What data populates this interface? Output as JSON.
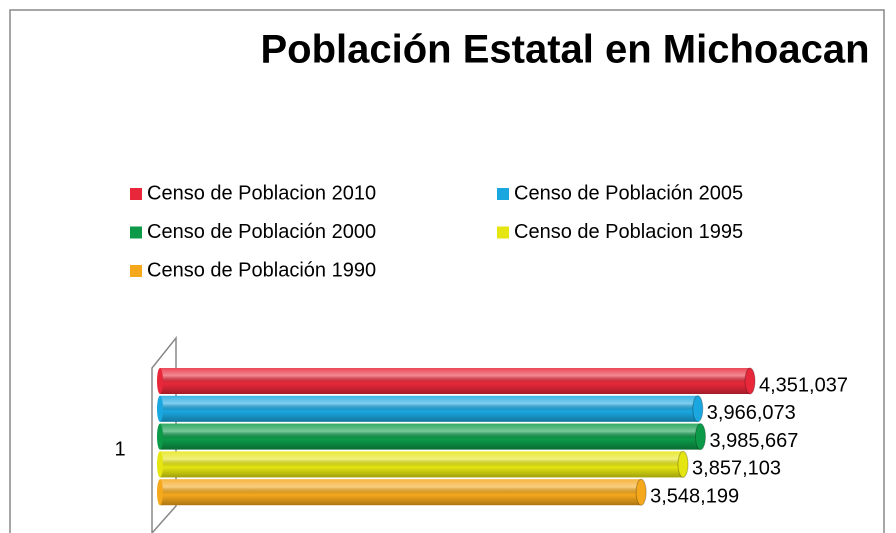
{
  "chart_data": {
    "type": "bar",
    "orientation": "horizontal",
    "title": "Población Estatal en Michoacan",
    "categories": [
      "1"
    ],
    "legend": "top",
    "series": [
      {
        "name": "Censo de Poblacion 2010",
        "color": "#e8283a",
        "values": [
          4351037
        ],
        "value_labels": [
          "4,351,037"
        ]
      },
      {
        "name": "Censo de Población 2005",
        "color": "#1aa7e0",
        "values": [
          3966073
        ],
        "value_labels": [
          "3,966,073"
        ]
      },
      {
        "name": "Censo de Población 2000",
        "color": "#0c9a48",
        "values": [
          3985667
        ],
        "value_labels": [
          "3,985,667"
        ]
      },
      {
        "name": "Censo de Poblacion 1995",
        "color": "#e5e512",
        "values": [
          3857103
        ],
        "value_labels": [
          "3,857,103"
        ]
      },
      {
        "name": "Censo de Población 1990",
        "color": "#f5a81c",
        "values": [
          3548199
        ],
        "value_labels": [
          "3,548,199"
        ]
      }
    ]
  }
}
